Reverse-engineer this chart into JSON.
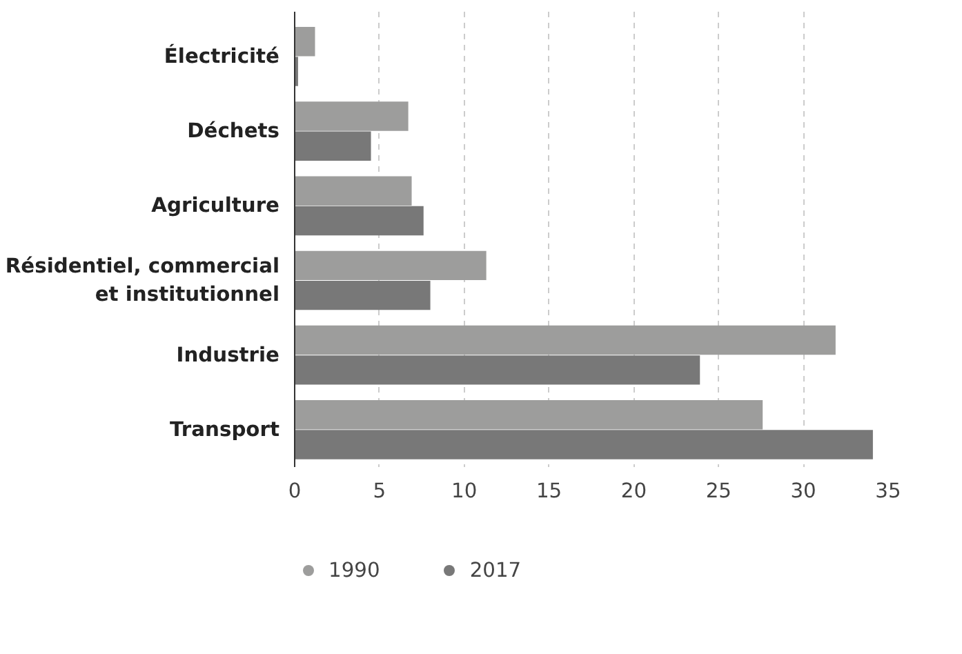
{
  "chart_data": {
    "type": "bar",
    "orientation": "horizontal",
    "categories": [
      "Électricité",
      "Déchets",
      "Agriculture",
      "Résidentiel, commercial\net institutionnel",
      "Industrie",
      "Transport"
    ],
    "series": [
      {
        "name": "1990",
        "color": "#9d9d9c",
        "values": [
          1.2,
          6.7,
          6.9,
          11.3,
          31.9,
          27.6
        ]
      },
      {
        "name": "2017",
        "color": "#787878",
        "values": [
          0.2,
          4.5,
          7.6,
          8.0,
          23.9,
          34.1
        ]
      }
    ],
    "xlim": [
      0,
      35
    ],
    "xticks": [
      0,
      5,
      10,
      15,
      20,
      25,
      30,
      35
    ],
    "grid": "x",
    "legend": "bottom left"
  }
}
